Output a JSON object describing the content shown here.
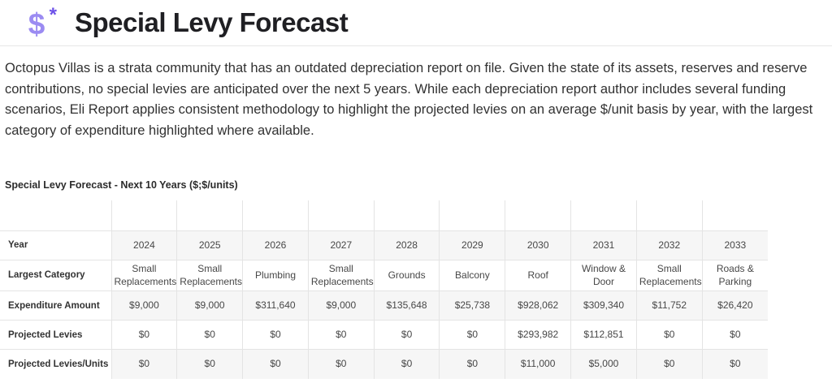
{
  "header": {
    "title": "Special Levy Forecast",
    "icon": {
      "name": "dollar-sparkle-icon",
      "dollar_glyph": "$",
      "asterisk_glyph": "*",
      "dollar_color": "#9b8bf2",
      "asterisk_color": "#6d52e8"
    }
  },
  "intro": {
    "text": "Octopus Villas is a strata community that has an outdated depreciation report on file. Given the state of its assets, reserves and reserve contributions, no special levies are anticipated over the next 5 years. While each depreciation report author includes several funding scenarios, Eli Report applies consistent methodology to highlight the projected levies on an average $/unit basis by year, with the largest category of expenditure highlighted where available."
  },
  "table": {
    "title": "Special Levy Forecast - Next 10 Years ($;$/units)",
    "stripe_color": "#f6f6f6",
    "border_color": "#e4e4e4",
    "years": [
      "2024",
      "2025",
      "2026",
      "2027",
      "2028",
      "2029",
      "2030",
      "2031",
      "2032",
      "2033"
    ],
    "rows": [
      {
        "label": "Year",
        "values": [
          "2024",
          "2025",
          "2026",
          "2027",
          "2028",
          "2029",
          "2030",
          "2031",
          "2032",
          "2033"
        ]
      },
      {
        "label": "Largest Category",
        "values": [
          "Small Replacements",
          "Small Replacements",
          "Plumbing",
          "Small Replacements",
          "Grounds",
          "Balcony",
          "Roof",
          "Window & Door",
          "Small Replacements",
          "Roads & Parking"
        ]
      },
      {
        "label": "Expenditure Amount",
        "values": [
          "$9,000",
          "$9,000",
          "$311,640",
          "$9,000",
          "$135,648",
          "$25,738",
          "$928,062",
          "$309,340",
          "$11,752",
          "$26,420"
        ]
      },
      {
        "label": "Projected Levies",
        "values": [
          "$0",
          "$0",
          "$0",
          "$0",
          "$0",
          "$0",
          "$293,982",
          "$112,851",
          "$0",
          "$0"
        ]
      },
      {
        "label": "Projected Levies/Units",
        "values": [
          "$0",
          "$0",
          "$0",
          "$0",
          "$0",
          "$0",
          "$11,000",
          "$5,000",
          "$0",
          "$0"
        ]
      }
    ]
  },
  "chart_data": {
    "type": "table",
    "title": "Special Levy Forecast - Next 10 Years ($;$/units)",
    "categories": [
      "2024",
      "2025",
      "2026",
      "2027",
      "2028",
      "2029",
      "2030",
      "2031",
      "2032",
      "2033"
    ],
    "series": [
      {
        "name": "Largest Category",
        "values": [
          "Small Replacements",
          "Small Replacements",
          "Plumbing",
          "Small Replacements",
          "Grounds",
          "Balcony",
          "Roof",
          "Window & Door",
          "Small Replacements",
          "Roads & Parking"
        ]
      },
      {
        "name": "Expenditure Amount",
        "values": [
          9000,
          9000,
          311640,
          9000,
          135648,
          25738,
          928062,
          309340,
          11752,
          26420
        ]
      },
      {
        "name": "Projected Levies",
        "values": [
          0,
          0,
          0,
          0,
          0,
          0,
          293982,
          112851,
          0,
          0
        ]
      },
      {
        "name": "Projected Levies/Units",
        "values": [
          0,
          0,
          0,
          0,
          0,
          0,
          11000,
          5000,
          0,
          0
        ]
      }
    ]
  }
}
